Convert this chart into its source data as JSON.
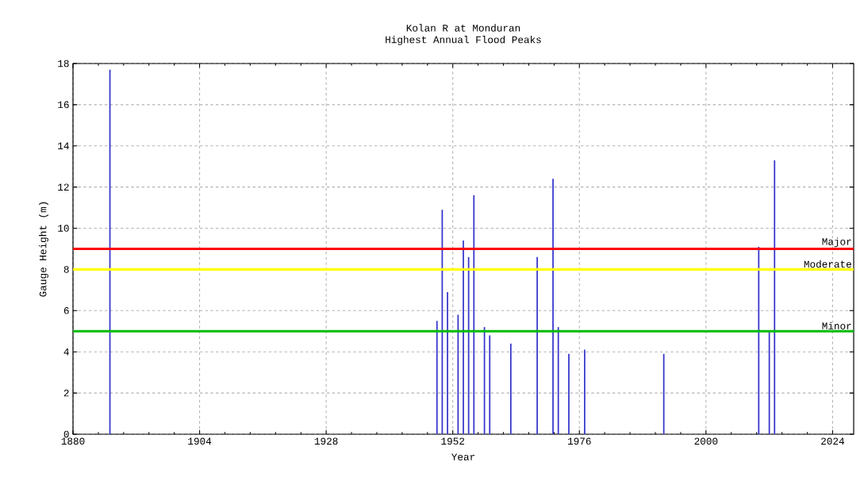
{
  "chart_data": {
    "type": "bar",
    "title": "Kolan R at Monduran",
    "subtitle": "Highest Annual Flood Peaks",
    "xlabel": "Year",
    "ylabel": "Gauge Height (m)",
    "x": [
      1887,
      1949,
      1950,
      1951,
      1953,
      1954,
      1955,
      1956,
      1958,
      1959,
      1963,
      1968,
      1971,
      1972,
      1974,
      1977,
      1992,
      2010,
      2012,
      2013
    ],
    "values": [
      17.7,
      5.5,
      10.9,
      6.9,
      5.8,
      9.4,
      8.6,
      11.6,
      5.2,
      4.8,
      4.4,
      8.6,
      12.4,
      5.2,
      3.9,
      4.1,
      3.9,
      9.1,
      5.0,
      13.3
    ],
    "color": "#3333cc",
    "xlim": [
      1880,
      2028
    ],
    "ylim": [
      0,
      18
    ],
    "xticks": [
      1880,
      1904,
      1928,
      1952,
      1976,
      2000,
      2024
    ],
    "yticks": [
      0,
      2,
      4,
      6,
      8,
      10,
      12,
      14,
      16,
      18
    ],
    "grid": true,
    "ref_lines": [
      {
        "axis": "y",
        "value": 9,
        "label": "Major",
        "color": "#ff0000"
      },
      {
        "axis": "y",
        "value": 8,
        "label": "Moderate",
        "color": "#ffff00"
      },
      {
        "axis": "y",
        "value": 5,
        "label": "Minor",
        "color": "#00bb00"
      }
    ]
  }
}
